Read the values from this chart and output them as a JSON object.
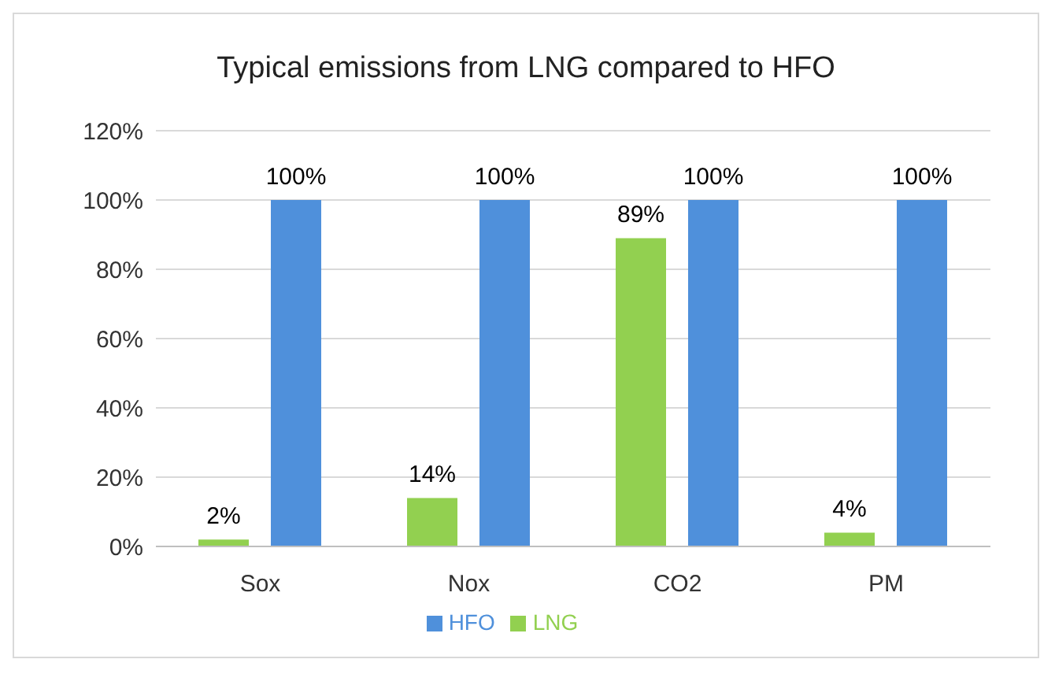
{
  "chart_data": {
    "type": "bar",
    "title": "Typical emissions from LNG compared to HFO",
    "categories": [
      "Sox",
      "Nox",
      "CO2",
      "PM"
    ],
    "series": [
      {
        "name": "LNG",
        "color": "#92d050",
        "values": [
          2,
          14,
          89,
          4
        ],
        "value_labels": [
          "2%",
          "14%",
          "89%",
          "4%"
        ]
      },
      {
        "name": "HFO",
        "color": "#4f90db",
        "values": [
          100,
          100,
          100,
          100
        ],
        "value_labels": [
          "100%",
          "100%",
          "100%",
          "100%"
        ]
      }
    ],
    "ylim": [
      0,
      120
    ],
    "yticks": [
      {
        "value": 0,
        "label": "0%"
      },
      {
        "value": 20,
        "label": "20%"
      },
      {
        "value": 40,
        "label": "40%"
      },
      {
        "value": 60,
        "label": "60%"
      },
      {
        "value": 80,
        "label": "80%"
      },
      {
        "value": 100,
        "label": "100%"
      },
      {
        "value": 120,
        "label": "120%"
      }
    ],
    "grid": "y",
    "legend": "bottom"
  }
}
